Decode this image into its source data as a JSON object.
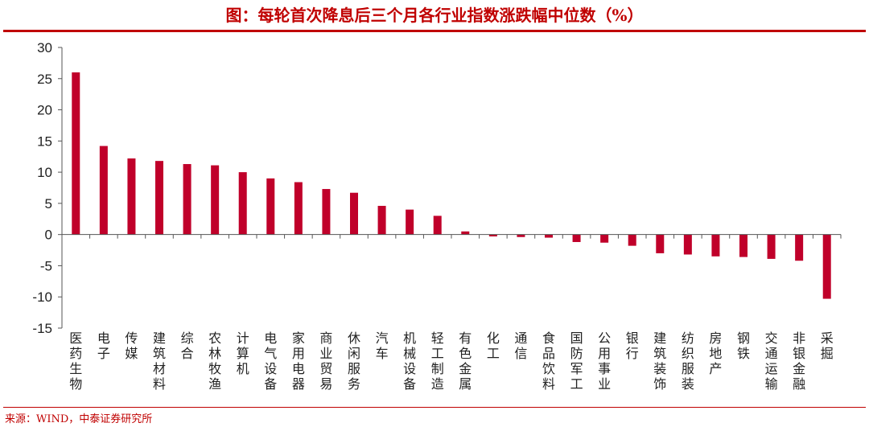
{
  "title": "图：每轮首次降息后三个月各行业指数涨跌幅中位数（%）",
  "source": "来源：WIND，中泰证券研究所",
  "chart_data": {
    "type": "bar",
    "title": "图：每轮首次降息后三个月各行业指数涨跌幅中位数（%）",
    "xlabel": "",
    "ylabel": "",
    "ylim": [
      -15,
      30
    ],
    "yticks": [
      30,
      25,
      20,
      15,
      10,
      5,
      0,
      -5,
      -10,
      -15
    ],
    "grid": false,
    "legend": "none",
    "bar_color": "#c0002a",
    "categories": [
      "医药生物",
      "电子",
      "传媒",
      "建筑材料",
      "综合",
      "农林牧渔",
      "计算机",
      "电气设备",
      "家用电器",
      "商业贸易",
      "休闲服务",
      "汽车",
      "机械设备",
      "轻工制造",
      "有色金属",
      "化工",
      "通信",
      "食品饮料",
      "国防军工",
      "公用事业",
      "银行",
      "建筑装饰",
      "纺织服装",
      "房地产",
      "钢铁",
      "交通运输",
      "非银金融",
      "采掘"
    ],
    "values": [
      26.0,
      14.2,
      12.2,
      11.8,
      11.3,
      11.1,
      10.0,
      9.0,
      8.4,
      7.3,
      6.7,
      4.6,
      4.0,
      3.0,
      0.5,
      -0.3,
      -0.4,
      -0.5,
      -1.2,
      -1.3,
      -1.8,
      -3.0,
      -3.2,
      -3.5,
      -3.6,
      -3.9,
      -4.2,
      -10.3
    ]
  }
}
